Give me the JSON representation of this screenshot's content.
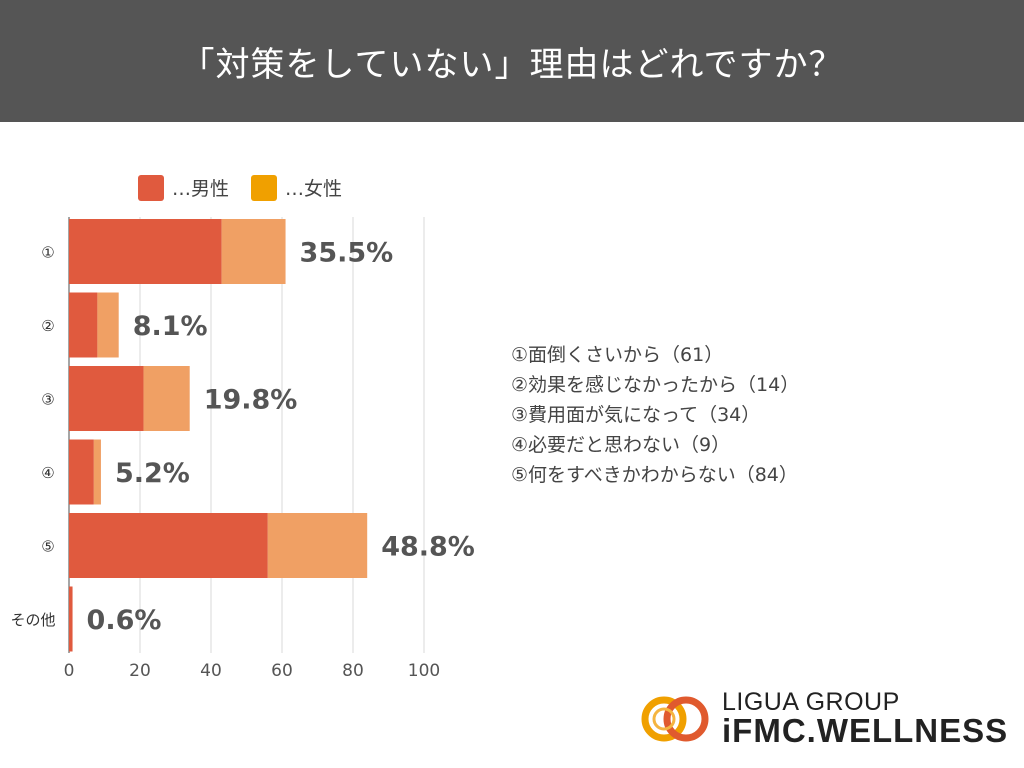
{
  "title": "「対策をしていない」理由はどれですか？",
  "legend": [
    {
      "label": "…男性",
      "color": "#e05a3e"
    },
    {
      "label": "…女性",
      "color": "#f0a064"
    }
  ],
  "notes": [
    "①面倒くさいから（61）",
    "②効果を感じなかったから（14）",
    "③費用面が気になって（34）",
    "④必要だと思わない（9）",
    "⑤何をすべきかわからない（84）"
  ],
  "logo": {
    "line1": "LIGUA GROUP",
    "line2": "iFMC.WELLNESS"
  },
  "chart_data": {
    "type": "bar",
    "orientation": "horizontal",
    "stacked": true,
    "categories": [
      "①",
      "②",
      "③",
      "④",
      "⑤",
      "その他"
    ],
    "series": [
      {
        "name": "…男性",
        "values": [
          43,
          8,
          21,
          7,
          56,
          1
        ]
      },
      {
        "name": "…女性",
        "values": [
          18,
          6,
          13,
          2,
          28,
          0
        ]
      }
    ],
    "data_labels": [
      "35.5%",
      "8.1%",
      "19.8%",
      "5.2%",
      "48.8%",
      "0.6%"
    ],
    "xlim": [
      0,
      100
    ],
    "xticks": [
      0,
      20,
      40,
      60,
      80,
      100
    ],
    "grid": true,
    "legend_position": "top-left"
  }
}
